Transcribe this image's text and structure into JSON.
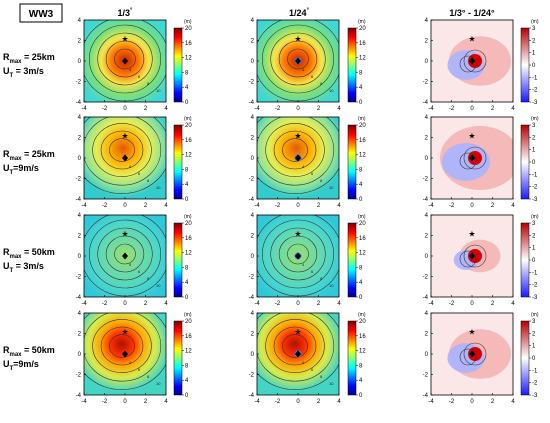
{
  "badge": "WW3",
  "columns": [
    {
      "title": "1/3",
      "sup": "°"
    },
    {
      "title": "1/24",
      "sup": "°"
    },
    {
      "title": "1/3° - 1/24°",
      "sup": ""
    }
  ],
  "rows": [
    {
      "r_main": "R",
      "r_sub": "max",
      "r_val": " = 25km",
      "u_main": "U",
      "u_sub": "T",
      "u_val": " = 3m/s"
    },
    {
      "r_main": "R",
      "r_sub": "max",
      "r_val": " = 25km",
      "u_main": "U",
      "u_sub": "T",
      "u_val": "=9m/s"
    },
    {
      "r_main": "R",
      "r_sub": "max",
      "r_val": " = 50km",
      "u_main": "U",
      "u_sub": "T",
      "u_val": " = 3m/s"
    },
    {
      "r_main": "R",
      "r_sub": "max",
      "r_val": " = 50km",
      "u_main": "U",
      "u_sub": "T",
      "u_val": "=9m/s"
    }
  ],
  "chart_data": {
    "type": "heatmap",
    "x_ticks": [
      -4,
      -2,
      0,
      2,
      4
    ],
    "y_ticks": [
      -4,
      -2,
      0,
      2,
      4
    ],
    "xlim": [
      -4,
      4
    ],
    "ylim": [
      -4,
      4
    ],
    "colorbar_main": {
      "unit": "(m)",
      "range": [
        0,
        20
      ],
      "ticks": [
        0,
        4,
        8,
        12,
        16,
        20
      ],
      "colormap": "jet"
    },
    "colorbar_diff": {
      "unit": "(m)",
      "range": [
        -3,
        3
      ],
      "ticks": [
        -3,
        -2,
        -1,
        0,
        1,
        2,
        3
      ],
      "colormap": "blue-white-red"
    },
    "contour_labels": [
      "4",
      "6",
      "8",
      "10",
      "12",
      "14"
    ],
    "markers": {
      "star": [
        0,
        2.2
      ],
      "diamond": [
        0,
        0
      ]
    }
  }
}
